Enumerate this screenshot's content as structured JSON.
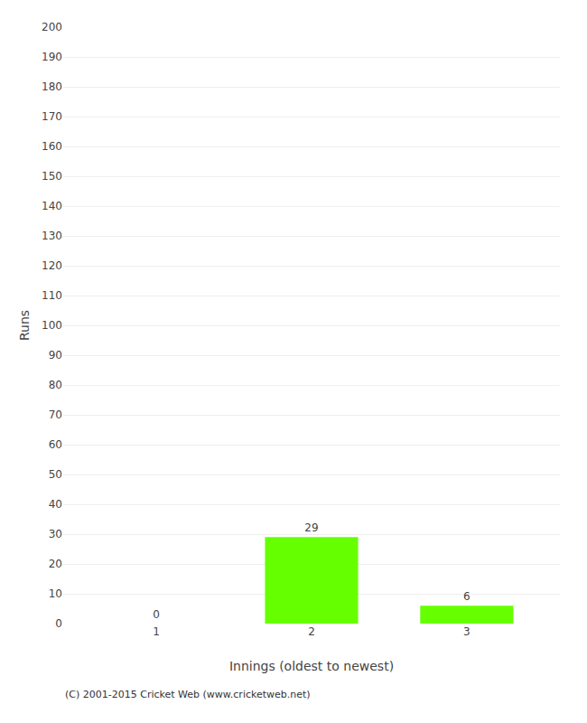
{
  "chart_data": {
    "type": "bar",
    "categories": [
      "1",
      "2",
      "3"
    ],
    "values": [
      0,
      29,
      6
    ],
    "color": "#66ff00",
    "xlabel": "Innings (oldest to newest)",
    "ylabel": "Runs",
    "ylim": [
      0,
      200
    ],
    "yticks": [
      0,
      10,
      20,
      30,
      40,
      50,
      60,
      70,
      80,
      90,
      100,
      110,
      120,
      130,
      140,
      150,
      160,
      170,
      180,
      190,
      200
    ],
    "grid": true,
    "data_labels": true,
    "annotations": [
      "(C) 2001-2015 Cricket Web (www.cricketweb.net)"
    ]
  }
}
